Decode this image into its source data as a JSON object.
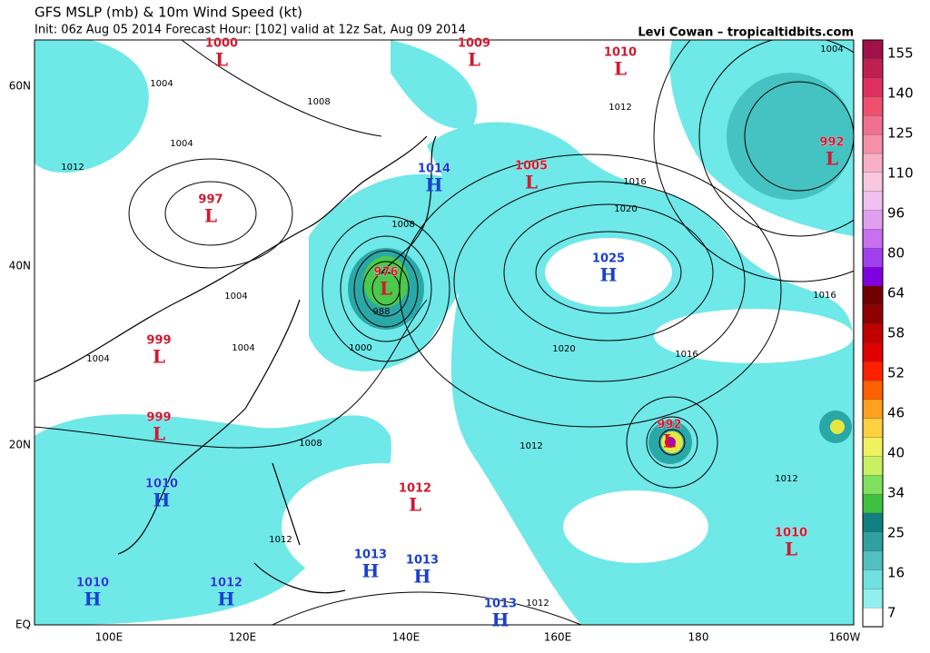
{
  "header": {
    "title": "GFS MSLP (mb) & 10m Wind Speed (kt)",
    "subtitle": "Init: 06z Aug 05 2014 Forecast Hour: [102] valid at 12z Sat, Aug 09 2014",
    "credit": "Levi Cowan – tropicaltidbits.com"
  },
  "axes": {
    "lat_labels": [
      "60N",
      "40N",
      "20N",
      "EQ"
    ],
    "lon_labels": [
      "100E",
      "120E",
      "140E",
      "160E",
      "180",
      "160W"
    ]
  },
  "centers": [
    {
      "pressure": "1000",
      "kind": "L"
    },
    {
      "pressure": "1009",
      "kind": "L"
    },
    {
      "pressure": "1010",
      "kind": "L"
    },
    {
      "pressure": "1014",
      "kind": "H"
    },
    {
      "pressure": "1005",
      "kind": "L"
    },
    {
      "pressure": "997",
      "kind": "L"
    },
    {
      "pressure": "992",
      "kind": "L"
    },
    {
      "pressure": "976",
      "kind": "L"
    },
    {
      "pressure": "1025",
      "kind": "H"
    },
    {
      "pressure": "999",
      "kind": "L"
    },
    {
      "pressure": "999",
      "kind": "L"
    },
    {
      "pressure": "992",
      "kind": "L"
    },
    {
      "pressure": "1010",
      "kind": "H"
    },
    {
      "pressure": "1012",
      "kind": "L"
    },
    {
      "pressure": "1010",
      "kind": "L"
    },
    {
      "pressure": "1013",
      "kind": "H"
    },
    {
      "pressure": "1013",
      "kind": "H"
    },
    {
      "pressure": "1010",
      "kind": "H"
    },
    {
      "pressure": "1012",
      "kind": "H"
    },
    {
      "pressure": "1013",
      "kind": "H"
    }
  ],
  "isobar_labels": [
    "1004",
    "1008",
    "1004",
    "1012",
    "1012",
    "1004",
    "1016",
    "1020",
    "1008",
    "1004",
    "1004",
    "1004",
    "988",
    "1000",
    "1020",
    "1016",
    "1016",
    "1008",
    "1012",
    "1012",
    "1012",
    "1012"
  ],
  "colorbar": {
    "ticks": [
      155,
      140,
      125,
      110,
      96,
      80,
      64,
      58,
      52,
      46,
      40,
      34,
      25,
      16,
      7
    ]
  }
}
